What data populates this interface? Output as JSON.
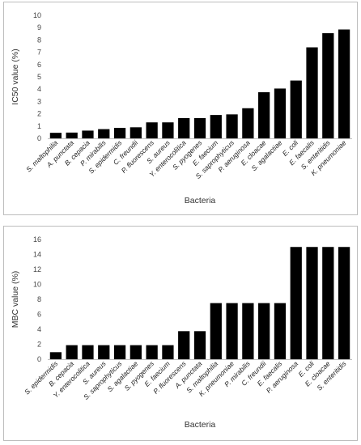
{
  "chart_data": [
    {
      "type": "bar",
      "xlabel": "Bacteria",
      "ylabel": "IC50 value (%)",
      "ylim": [
        0,
        10
      ],
      "yticks": [
        0,
        1,
        2,
        3,
        4,
        5,
        6,
        7,
        8,
        9,
        10
      ],
      "grid": false,
      "bar_color": "#000000",
      "categories": [
        "S. maltophilia",
        "A. punctata",
        "B. cepacia",
        "P. mirabilis",
        "S. epidermidis",
        "C. freundii",
        "P. fluorescens",
        "S. aureus",
        "Y. enterocolitica",
        "S. pyogenes",
        "E. faecium",
        "S. saprophyticus",
        "P. aeruginosa",
        "E. cloacae",
        "S. agalactiae",
        "E. coli",
        "E. faecalis",
        "S. enteritidis",
        "K. pneumoniae"
      ],
      "values": [
        0.45,
        0.47,
        0.63,
        0.75,
        0.85,
        0.9,
        1.3,
        1.3,
        1.65,
        1.65,
        1.9,
        1.95,
        2.45,
        3.75,
        4.05,
        4.7,
        7.4,
        8.55,
        8.85
      ]
    },
    {
      "type": "bar",
      "xlabel": "Bacteria",
      "ylabel": "MBC value (%)",
      "ylim": [
        0,
        16
      ],
      "yticks": [
        0,
        2,
        4,
        6,
        8,
        10,
        12,
        14,
        16
      ],
      "grid": false,
      "bar_color": "#000000",
      "categories": [
        "S. epidermidis",
        "B. cepacia",
        "Y. enterocolitica",
        "S. aureus",
        "S. saprophyticus",
        "S. agalactiae",
        "S. pyogenes",
        "E. faecium",
        "P. fluorescens",
        "A. punctata",
        "S. maltophilia",
        "K. pneumoniae",
        "P. mirabilis",
        "C. freundii",
        "E. faecalis",
        "P. aeruginosa",
        "E. coli",
        "E. cloacae",
        "S. enteritidis"
      ],
      "values": [
        0.94,
        1.88,
        1.88,
        1.88,
        1.88,
        1.88,
        1.88,
        1.88,
        3.75,
        3.75,
        7.5,
        7.5,
        7.5,
        7.5,
        7.5,
        15,
        15,
        15,
        15
      ]
    }
  ]
}
